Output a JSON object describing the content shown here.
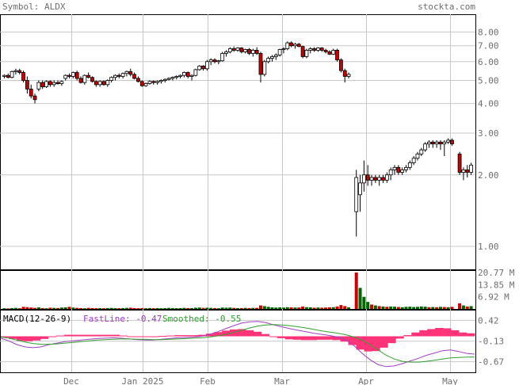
{
  "header": {
    "symbol_label": "Symbol: ALDX",
    "site": "stockta.com"
  },
  "colors": {
    "up": "#ffffff",
    "down": "#cc0000",
    "outline": "#000000",
    "vol_up": "#006600",
    "vol_down": "#cc0000",
    "grid": "#c8c8c8",
    "text": "#6e6e6e",
    "macd_hist": "#ff3377",
    "fastline": "#a040c0",
    "smoothed": "#30a030"
  },
  "chart_data": [
    {
      "type": "candlestick",
      "y_scale": "log",
      "ylim": [
        0.8,
        9.5
      ],
      "y_ticks": [
        "8.00",
        "7.00",
        "6.00",
        "5.00",
        "4.00",
        "3.00",
        "2.00",
        "1.00"
      ],
      "x_ticks": [
        "Dec",
        "Jan 2025",
        "Feb",
        "Mar",
        "Apr",
        "May"
      ],
      "grid": true,
      "candles": [
        [
          5.2,
          5.3,
          5.1,
          5.25
        ],
        [
          5.25,
          5.35,
          5.1,
          5.15
        ],
        [
          5.15,
          5.5,
          5.1,
          5.45
        ],
        [
          5.45,
          5.6,
          5.3,
          5.5
        ],
        [
          5.5,
          5.6,
          5.3,
          5.4
        ],
        [
          5.4,
          5.5,
          4.9,
          5.0
        ],
        [
          5.0,
          5.2,
          4.4,
          4.6
        ],
        [
          4.6,
          4.8,
          4.2,
          4.3
        ],
        [
          4.3,
          4.4,
          4.0,
          4.15
        ],
        [
          4.6,
          5.0,
          4.5,
          4.9
        ],
        [
          4.9,
          5.0,
          4.6,
          4.7
        ],
        [
          4.7,
          5.0,
          4.65,
          4.95
        ],
        [
          4.95,
          5.0,
          4.7,
          4.8
        ],
        [
          4.8,
          5.0,
          4.7,
          4.9
        ],
        [
          4.9,
          5.0,
          4.8,
          4.85
        ],
        [
          4.85,
          5.0,
          4.75,
          4.95
        ],
        [
          5.1,
          5.3,
          5.0,
          5.25
        ],
        [
          5.25,
          5.35,
          5.1,
          5.2
        ],
        [
          5.2,
          5.45,
          5.1,
          5.4
        ],
        [
          5.4,
          5.5,
          5.0,
          5.1
        ],
        [
          5.1,
          5.2,
          4.85,
          4.9
        ],
        [
          4.9,
          5.3,
          4.8,
          5.25
        ],
        [
          5.25,
          5.4,
          5.1,
          5.15
        ],
        [
          5.15,
          5.2,
          4.9,
          4.95
        ],
        [
          4.95,
          5.0,
          4.7,
          4.8
        ],
        [
          4.8,
          5.0,
          4.7,
          4.95
        ],
        [
          4.95,
          5.0,
          4.75,
          4.8
        ],
        [
          4.8,
          5.05,
          4.7,
          5.0
        ],
        [
          5.0,
          5.2,
          4.9,
          5.15
        ],
        [
          5.15,
          5.3,
          5.0,
          5.25
        ],
        [
          5.25,
          5.35,
          5.1,
          5.2
        ],
        [
          5.2,
          5.4,
          5.1,
          5.35
        ],
        [
          5.35,
          5.5,
          5.2,
          5.45
        ],
        [
          5.45,
          5.6,
          5.2,
          5.3
        ],
        [
          5.3,
          5.4,
          5.05,
          5.1
        ],
        [
          5.1,
          5.2,
          4.9,
          4.95
        ],
        [
          4.95,
          5.0,
          4.7,
          4.75
        ],
        [
          4.75,
          4.9,
          4.7,
          4.85
        ],
        [
          4.85,
          5.0,
          4.8,
          4.95
        ],
        [
          4.95,
          5.0,
          4.8,
          4.9
        ],
        [
          4.9,
          5.0,
          4.8,
          4.95
        ],
        [
          4.95,
          5.05,
          4.85,
          5.0
        ],
        [
          5.0,
          5.1,
          4.9,
          5.05
        ],
        [
          5.05,
          5.15,
          5.0,
          5.1
        ],
        [
          5.1,
          5.2,
          5.0,
          5.15
        ],
        [
          5.15,
          5.25,
          5.05,
          5.2
        ],
        [
          5.2,
          5.3,
          5.1,
          5.25
        ],
        [
          5.25,
          5.45,
          5.15,
          5.4
        ],
        [
          5.4,
          5.45,
          5.1,
          5.2
        ],
        [
          5.2,
          5.3,
          5.0,
          5.25
        ],
        [
          5.25,
          5.6,
          5.2,
          5.55
        ],
        [
          5.55,
          5.8,
          5.5,
          5.75
        ],
        [
          5.75,
          5.8,
          5.5,
          5.6
        ],
        [
          5.6,
          6.1,
          5.5,
          6.0
        ],
        [
          6.0,
          6.2,
          5.8,
          6.1
        ],
        [
          6.1,
          6.2,
          5.9,
          6.0
        ],
        [
          6.0,
          6.1,
          5.85,
          6.05
        ],
        [
          6.05,
          6.6,
          6.0,
          6.5
        ],
        [
          6.5,
          6.7,
          6.3,
          6.6
        ],
        [
          6.6,
          6.9,
          6.5,
          6.8
        ],
        [
          6.8,
          6.95,
          6.6,
          6.7
        ],
        [
          6.7,
          6.9,
          6.6,
          6.85
        ],
        [
          6.85,
          6.9,
          6.5,
          6.6
        ],
        [
          6.6,
          6.8,
          6.5,
          6.75
        ],
        [
          6.75,
          6.85,
          6.4,
          6.5
        ],
        [
          6.5,
          6.8,
          6.3,
          6.7
        ],
        [
          6.7,
          6.9,
          6.4,
          6.5
        ],
        [
          6.5,
          6.6,
          4.9,
          5.3
        ],
        [
          5.3,
          6.1,
          5.2,
          6.0
        ],
        [
          6.0,
          6.3,
          5.9,
          6.2
        ],
        [
          6.2,
          6.4,
          6.0,
          6.3
        ],
        [
          6.3,
          6.5,
          6.1,
          6.4
        ],
        [
          6.4,
          6.8,
          6.3,
          6.75
        ],
        [
          6.75,
          6.9,
          6.5,
          6.8
        ],
        [
          6.8,
          7.3,
          6.7,
          7.2
        ],
        [
          7.2,
          7.3,
          6.9,
          7.0
        ],
        [
          7.0,
          7.2,
          6.8,
          7.1
        ],
        [
          7.1,
          7.2,
          6.9,
          6.95
        ],
        [
          6.95,
          7.0,
          6.2,
          6.3
        ],
        [
          6.3,
          6.8,
          6.2,
          6.7
        ],
        [
          6.7,
          6.9,
          6.5,
          6.8
        ],
        [
          6.8,
          6.9,
          6.6,
          6.7
        ],
        [
          6.7,
          6.9,
          6.6,
          6.85
        ],
        [
          6.85,
          6.9,
          6.6,
          6.7
        ],
        [
          6.7,
          6.8,
          6.5,
          6.6
        ],
        [
          6.6,
          6.7,
          6.4,
          6.45
        ],
        [
          6.45,
          6.8,
          6.4,
          6.7
        ],
        [
          6.7,
          6.8,
          6.0,
          6.1
        ],
        [
          6.1,
          6.2,
          5.4,
          5.5
        ],
        [
          5.5,
          5.6,
          4.9,
          5.2
        ],
        [
          5.2,
          5.4,
          5.1,
          5.3
        ],
        null,
        [
          1.4,
          2.1,
          1.1,
          1.95
        ],
        [
          1.65,
          2.0,
          1.4,
          1.85
        ],
        [
          1.85,
          2.3,
          1.7,
          2.0
        ],
        [
          2.0,
          2.2,
          1.8,
          1.9
        ],
        [
          1.9,
          2.0,
          1.8,
          1.95
        ],
        [
          1.95,
          2.0,
          1.85,
          1.9
        ],
        [
          1.9,
          2.0,
          1.8,
          1.95
        ],
        [
          1.95,
          2.0,
          1.85,
          1.9
        ],
        [
          1.9,
          2.05,
          1.85,
          2.0
        ],
        [
          2.0,
          2.15,
          1.9,
          2.1
        ],
        [
          2.1,
          2.2,
          2.0,
          2.15
        ],
        [
          2.15,
          2.2,
          2.0,
          2.05
        ],
        [
          2.05,
          2.15,
          2.0,
          2.1
        ],
        [
          2.1,
          2.2,
          2.05,
          2.15
        ],
        [
          2.15,
          2.3,
          2.1,
          2.25
        ],
        [
          2.25,
          2.4,
          2.2,
          2.35
        ],
        [
          2.35,
          2.5,
          2.3,
          2.45
        ],
        [
          2.45,
          2.6,
          2.4,
          2.55
        ],
        [
          2.55,
          2.75,
          2.5,
          2.7
        ],
        [
          2.7,
          2.8,
          2.6,
          2.75
        ],
        [
          2.75,
          2.8,
          2.6,
          2.7
        ],
        [
          2.7,
          2.8,
          2.6,
          2.75
        ],
        [
          2.75,
          2.8,
          2.55,
          2.7
        ],
        [
          2.7,
          2.8,
          2.4,
          2.75
        ],
        [
          2.75,
          2.85,
          2.7,
          2.8
        ],
        [
          2.8,
          2.85,
          2.65,
          2.7
        ],
        null,
        [
          2.45,
          2.5,
          2.0,
          2.05
        ],
        [
          2.05,
          2.15,
          1.9,
          2.1
        ],
        [
          2.1,
          2.2,
          1.95,
          2.05
        ],
        [
          2.05,
          2.25,
          2.0,
          2.2
        ]
      ]
    },
    {
      "type": "bar",
      "title": "",
      "y_ticks": [
        "20.77 M",
        "13.85 M",
        "6.92 M"
      ],
      "ymax": 20.77,
      "values": [
        0.4,
        0.3,
        0.5,
        0.6,
        0.4,
        1.2,
        1.0,
        0.8,
        0.6,
        0.9,
        0.5,
        0.4,
        0.7,
        0.6,
        0.5,
        0.8,
        0.9,
        1.2,
        0.8,
        0.6,
        0.5,
        0.4,
        0.6,
        0.5,
        0.4,
        0.5,
        0.4,
        0.5,
        0.6,
        0.5,
        0.4,
        0.5,
        0.6,
        0.7,
        0.5,
        0.4,
        0.5,
        0.4,
        0.5,
        0.4,
        0.5,
        0.4,
        0.5,
        0.6,
        0.5,
        0.4,
        0.5,
        0.6,
        0.5,
        0.5,
        0.7,
        0.8,
        0.6,
        0.7,
        0.6,
        0.5,
        0.4,
        0.8,
        0.7,
        0.8,
        0.6,
        0.5,
        0.5,
        0.6,
        0.5,
        0.6,
        0.6,
        2.0,
        1.6,
        1.2,
        0.9,
        0.8,
        0.9,
        0.8,
        1.0,
        0.9,
        0.8,
        0.8,
        1.4,
        1.0,
        0.9,
        0.7,
        0.8,
        0.7,
        0.8,
        0.9,
        1.0,
        1.4,
        2.2,
        1.6,
        0.9,
        0,
        20.77,
        12.0,
        6.9,
        4.0,
        2.5,
        2.0,
        1.6,
        1.4,
        1.2,
        1.4,
        1.3,
        1.1,
        1.0,
        1.2,
        1.3,
        1.1,
        1.2,
        1.4,
        1.3,
        1.0,
        1.1,
        1.0,
        1.2,
        1.1,
        1.0,
        1.2,
        0,
        3.2,
        2.0,
        1.4,
        1.6
      ],
      "up": [
        1,
        0,
        1,
        1,
        0,
        0,
        0,
        0,
        0,
        1,
        0,
        1,
        0,
        1,
        0,
        1,
        1,
        0,
        1,
        0,
        0,
        1,
        0,
        0,
        0,
        1,
        0,
        1,
        1,
        1,
        0,
        1,
        1,
        0,
        0,
        0,
        0,
        1,
        1,
        0,
        1,
        1,
        1,
        1,
        1,
        1,
        1,
        1,
        0,
        1,
        1,
        1,
        0,
        1,
        1,
        0,
        1,
        1,
        1,
        1,
        0,
        1,
        0,
        1,
        0,
        1,
        0,
        0,
        1,
        1,
        1,
        1,
        1,
        1,
        1,
        0,
        1,
        0,
        0,
        1,
        1,
        0,
        1,
        0,
        0,
        0,
        1,
        0,
        0,
        0,
        1,
        0,
        0,
        1,
        1,
        1,
        0,
        1,
        0,
        1,
        0,
        1,
        1,
        0,
        1,
        1,
        1,
        1,
        1,
        1,
        1,
        0,
        1,
        0,
        1,
        0,
        1,
        0,
        0,
        0,
        1,
        0,
        1
      ],
      "grid": true
    },
    {
      "type": "line",
      "title": "MACD(12-26-9)",
      "y_ticks": [
        "0.42",
        "-0.13",
        "-0.67"
      ],
      "ylim": [
        -0.95,
        0.7
      ],
      "series": [
        {
          "name": "FastLine",
          "last_label": "-0.47",
          "values": [
            -0.05,
            -0.12,
            -0.22,
            -0.28,
            -0.3,
            -0.28,
            -0.22,
            -0.18,
            -0.14,
            -0.12,
            -0.1,
            -0.08,
            -0.06,
            -0.05,
            -0.04,
            -0.05,
            -0.07,
            -0.09,
            -0.1,
            -0.1,
            -0.08,
            -0.06,
            -0.04,
            -0.03,
            -0.02,
            0.0,
            0.05,
            0.12,
            0.2,
            0.28,
            0.35,
            0.38,
            0.39,
            0.36,
            0.3,
            0.25,
            0.2,
            0.16,
            0.12,
            0.08,
            0.05,
            0.02,
            -0.02,
            -0.1,
            -0.25,
            -0.45,
            -0.62,
            -0.75,
            -0.8,
            -0.78,
            -0.72,
            -0.65,
            -0.58,
            -0.5,
            -0.44,
            -0.38,
            -0.36,
            -0.4,
            -0.45,
            -0.47
          ]
        },
        {
          "name": "Smoothed",
          "last_label": "-0.55",
          "values": [
            -0.02,
            -0.05,
            -0.1,
            -0.15,
            -0.19,
            -0.21,
            -0.21,
            -0.2,
            -0.18,
            -0.16,
            -0.14,
            -0.12,
            -0.1,
            -0.09,
            -0.08,
            -0.07,
            -0.07,
            -0.08,
            -0.08,
            -0.09,
            -0.09,
            -0.08,
            -0.07,
            -0.06,
            -0.05,
            -0.04,
            -0.02,
            0.01,
            0.05,
            0.1,
            0.16,
            0.22,
            0.27,
            0.3,
            0.31,
            0.3,
            0.28,
            0.25,
            0.22,
            0.18,
            0.14,
            0.11,
            0.08,
            0.04,
            -0.02,
            -0.1,
            -0.22,
            -0.36,
            -0.5,
            -0.6,
            -0.66,
            -0.68,
            -0.68,
            -0.66,
            -0.63,
            -0.6,
            -0.57,
            -0.56,
            -0.55,
            -0.55
          ]
        }
      ],
      "histogram": [
        -0.03,
        -0.07,
        -0.12,
        -0.13,
        -0.11,
        -0.07,
        -0.01,
        0.02,
        0.04,
        0.04,
        0.04,
        0.04,
        0.04,
        0.04,
        0.04,
        0.02,
        0.0,
        -0.01,
        -0.02,
        -0.01,
        0.01,
        0.02,
        0.03,
        0.03,
        0.03,
        0.04,
        0.07,
        0.11,
        0.15,
        0.18,
        0.19,
        0.16,
        0.12,
        0.06,
        -0.01,
        -0.05,
        -0.08,
        -0.09,
        -0.1,
        -0.1,
        -0.09,
        -0.09,
        -0.1,
        -0.14,
        -0.23,
        -0.35,
        -0.4,
        -0.39,
        -0.3,
        -0.18,
        -0.06,
        0.03,
        0.1,
        0.16,
        0.19,
        0.22,
        0.21,
        0.16,
        0.1,
        0.08
      ]
    }
  ]
}
